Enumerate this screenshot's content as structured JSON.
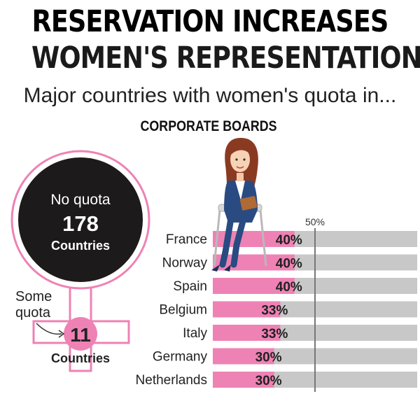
{
  "title_line1": "RESERVATION INCREASES",
  "title_line2": "WOMEN'S REPRESENTATION",
  "subtitle": "Major countries with women's quota in...",
  "section": "CORPORATE BOARDS",
  "colors": {
    "pink": "#ee82b4",
    "grey": "#c8c8c8",
    "dark": "#1c1a1b",
    "marker": "#777777"
  },
  "summary": {
    "no_quota_label": "No quota",
    "no_quota_count": "178",
    "no_quota_unit": "Countries",
    "some_quota_label_line1": "Some",
    "some_quota_label_line2": "quota",
    "some_quota_count": "11",
    "some_quota_unit": "Countries"
  },
  "chart_data": {
    "type": "bar",
    "orientation": "horizontal",
    "categories": [
      "France",
      "Norway",
      "Spain",
      "Belgium",
      "Italy",
      "Germany",
      "Netherlands"
    ],
    "values": [
      40,
      40,
      40,
      33,
      33,
      30,
      30
    ],
    "value_labels": [
      "40%",
      "40%",
      "40%",
      "33%",
      "33%",
      "30%",
      "30%"
    ],
    "reference_line": {
      "value": 50,
      "label": "50%"
    },
    "xlim": [
      0,
      100
    ]
  },
  "illustration": "woman-on-chair"
}
